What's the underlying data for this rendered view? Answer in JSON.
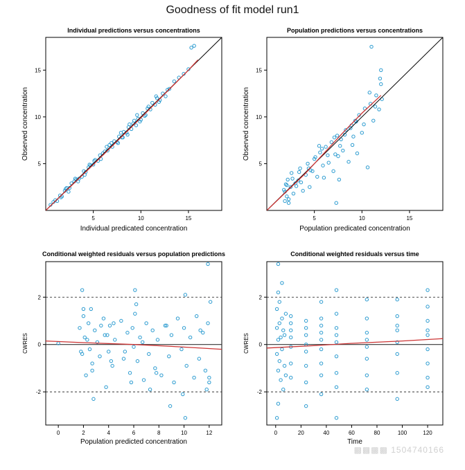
{
  "figure": {
    "title": "Goodness of fit model run1"
  },
  "colors": {
    "points": "#2b9bd0",
    "smooth": "#cc3333",
    "identity": "#000000",
    "axes": "#000000",
    "reference": "#333333"
  },
  "chart_data": [
    {
      "type": "scatter",
      "title": "Individual predictions versus concentrations",
      "xlabel": "Individual predicated concentration",
      "ylabel": "Observed concentration",
      "xlim": [
        0,
        18.5
      ],
      "ylim": [
        0,
        18.5
      ],
      "xticks": [
        5,
        10,
        15
      ],
      "yticks": [
        5,
        10,
        15
      ],
      "identity_line": true,
      "smooth": [
        [
          0,
          0
        ],
        [
          5,
          4.9
        ],
        [
          10,
          9.9
        ],
        [
          15,
          15.0
        ],
        [
          16,
          16.1
        ]
      ],
      "x": [
        0.5,
        0.8,
        1.0,
        1.2,
        1.5,
        1.7,
        2.0,
        2.2,
        2.5,
        2.7,
        3.0,
        3.2,
        3.5,
        3.8,
        4.0,
        4.2,
        4.5,
        4.7,
        5.0,
        5.2,
        5.5,
        5.7,
        6.0,
        6.2,
        6.5,
        6.7,
        7.0,
        7.2,
        7.5,
        7.7,
        8.0,
        8.2,
        8.5,
        8.7,
        9.0,
        9.2,
        9.5,
        9.7,
        10.0,
        10.2,
        10.5,
        10.7,
        11.0,
        11.2,
        11.5,
        11.7,
        12.0,
        12.3,
        12.6,
        13.0,
        13.5,
        14.0,
        14.5,
        15.0,
        15.3,
        15.6,
        2.1,
        3.4,
        4.6,
        5.8,
        6.9,
        8.1,
        9.3,
        10.4,
        11.6,
        6.4,
        7.6,
        8.8,
        9.9,
        5.1,
        4.1,
        3.1,
        2.4,
        1.6,
        7.9,
        8.6,
        9.6,
        10.8,
        11.9,
        12.8
      ],
      "y": [
        0.6,
        0.9,
        1.1,
        1.0,
        1.6,
        1.5,
        2.1,
        2.4,
        2.4,
        2.9,
        3.1,
        3.3,
        3.4,
        3.6,
        4.2,
        4.1,
        4.6,
        4.8,
        4.9,
        5.4,
        5.3,
        5.9,
        6.1,
        6.3,
        6.4,
        7.0,
        6.8,
        7.4,
        7.3,
        7.9,
        7.8,
        8.4,
        8.3,
        8.9,
        8.7,
        9.3,
        9.1,
        9.8,
        9.7,
        10.4,
        10.2,
        10.9,
        10.8,
        11.5,
        11.3,
        12.0,
        11.8,
        12.5,
        12.2,
        13.0,
        13.8,
        14.2,
        14.6,
        15.1,
        17.4,
        17.6,
        2.3,
        3.1,
        4.9,
        5.5,
        7.2,
        7.8,
        9.6,
        10.1,
        12.2,
        6.8,
        7.2,
        9.2,
        9.5,
        5.3,
        3.8,
        3.4,
        2.0,
        1.4,
        8.3,
        8.1,
        10.2,
        11.1,
        11.6,
        12.9
      ]
    },
    {
      "type": "scatter",
      "title": "Population predictions versus concentrations",
      "xlabel": "Population predicated concentration",
      "ylabel": "Observed concentration",
      "xlim": [
        0,
        18.5
      ],
      "ylim": [
        0,
        18.5
      ],
      "xticks": [
        5,
        10,
        15
      ],
      "yticks": [
        5,
        10,
        15
      ],
      "identity_line": true,
      "smooth": [
        [
          0,
          0
        ],
        [
          4,
          3.9
        ],
        [
          8,
          8.3
        ],
        [
          10,
          10.4
        ],
        [
          12,
          12.3
        ]
      ],
      "x": [
        1.8,
        1.9,
        2.0,
        2.1,
        2.2,
        2.3,
        2.5,
        2.6,
        2.8,
        3.0,
        3.3,
        3.5,
        3.8,
        4.1,
        4.3,
        4.5,
        4.8,
        5.0,
        5.3,
        5.6,
        5.9,
        6.2,
        6.5,
        6.8,
        7.0,
        7.2,
        7.4,
        7.6,
        7.8,
        8.0,
        8.3,
        8.6,
        8.9,
        9.1,
        9.3,
        9.5,
        9.7,
        10.0,
        10.3,
        10.6,
        10.9,
        11.2,
        11.5,
        11.8,
        12.0,
        12.1,
        1.9,
        2.3,
        2.7,
        3.1,
        3.6,
        4.4,
        5.1,
        5.8,
        6.4,
        7.1,
        7.5,
        8.2,
        8.8,
        9.4,
        10.2,
        10.8,
        11.4,
        11.9,
        2.1,
        3.4,
        5.5,
        7.3,
        9.0,
        11.0,
        12.0,
        6.0,
        7.7,
        4.6
      ],
      "y": [
        2.2,
        1.0,
        2.8,
        1.5,
        3.3,
        0.8,
        2.5,
        4.0,
        1.8,
        2.9,
        3.2,
        4.5,
        2.1,
        3.8,
        5.0,
        2.5,
        4.2,
        5.5,
        3.6,
        6.2,
        4.8,
        6.8,
        5.1,
        7.3,
        4.2,
        6.0,
        8.0,
        3.3,
        7.6,
        6.4,
        8.6,
        5.2,
        9.1,
        7.9,
        9.6,
        6.1,
        10.2,
        8.3,
        10.9,
        4.6,
        11.4,
        9.6,
        12.3,
        10.8,
        13.5,
        11.9,
        2.0,
        1.2,
        3.4,
        2.6,
        3.0,
        4.5,
        5.7,
        6.6,
        5.9,
        7.8,
        5.8,
        8.1,
        8.8,
        9.5,
        9.2,
        12.6,
        11.1,
        14.1,
        2.7,
        4.1,
        6.9,
        0.8,
        7.0,
        17.5,
        15.0,
        3.5,
        6.9,
        4.3
      ]
    },
    {
      "type": "scatter",
      "title": "Conditional weighted residuals versus population predictions",
      "xlabel": "Population predicted concentration",
      "ylabel": "CWRES",
      "xlim": [
        -1,
        13
      ],
      "ylim": [
        -3.4,
        3.5
      ],
      "xticks": [
        0,
        2,
        4,
        6,
        8,
        10,
        12
      ],
      "yticks": [
        -2,
        0,
        2
      ],
      "hlines": [
        {
          "y": 2,
          "style": "dashed"
        },
        {
          "y": -2,
          "style": "dashed"
        },
        {
          "y": 0,
          "style": "solid"
        }
      ],
      "smooth": [
        [
          -1,
          0.15
        ],
        [
          2,
          0.08
        ],
        [
          6,
          0.0
        ],
        [
          9,
          -0.08
        ],
        [
          13,
          -0.2
        ]
      ],
      "x": [
        0.0,
        1.7,
        1.9,
        2.0,
        2.1,
        2.2,
        2.4,
        2.5,
        2.6,
        2.7,
        2.9,
        3.1,
        3.3,
        3.6,
        3.8,
        3.9,
        4.0,
        4.1,
        4.3,
        4.5,
        5.0,
        5.2,
        5.5,
        5.7,
        5.9,
        6.0,
        6.1,
        6.3,
        6.5,
        6.8,
        7.0,
        7.2,
        7.5,
        7.7,
        7.9,
        8.2,
        8.5,
        8.8,
        9.0,
        9.2,
        9.5,
        9.8,
        10.0,
        10.2,
        10.5,
        10.8,
        11.0,
        11.2,
        11.5,
        11.7,
        11.9,
        12.0,
        12.1,
        1.8,
        2.3,
        2.8,
        3.4,
        4.2,
        5.3,
        6.2,
        7.3,
        8.9,
        10.1,
        11.8,
        2.0,
        2.7,
        3.7,
        4.4,
        5.8,
        6.7,
        7.8,
        8.6,
        9.9,
        11.3,
        12.0,
        10.1,
        1.9,
        6.1,
        11.9
      ],
      "y": [
        0.05,
        0.7,
        -0.4,
        1.2,
        0.3,
        -1.3,
        0.9,
        -0.2,
        1.5,
        -0.8,
        0.6,
        0.1,
        -0.5,
        1.1,
        -1.8,
        0.4,
        -0.3,
        0.8,
        -0.9,
        0.2,
        1.0,
        -0.6,
        0.5,
        -1.2,
        0.7,
        -0.1,
        1.3,
        -0.7,
        0.3,
        -1.5,
        0.9,
        -0.4,
        0.6,
        -1.0,
        0.2,
        -1.3,
        0.8,
        -0.5,
        0.4,
        -1.6,
        1.1,
        -0.2,
        0.7,
        -0.9,
        0.3,
        -1.4,
        1.2,
        -0.6,
        0.5,
        -1.1,
        0.9,
        -1.6,
        1.8,
        -0.3,
        0.2,
        -2.3,
        0.8,
        -0.7,
        -0.3,
        1.7,
        -1.9,
        -2.6,
        -3.1,
        -1.9,
        1.5,
        -1.1,
        0.4,
        0.9,
        -1.6,
        0.1,
        -1.2,
        0.8,
        -2.1,
        0.6,
        -1.4,
        2.1,
        2.3,
        2.3,
        3.4
      ]
    },
    {
      "type": "scatter",
      "title": "Conditional weighted residuals versus time",
      "xlabel": "Time",
      "ylabel": "CWRES",
      "xlim": [
        -7,
        132
      ],
      "ylim": [
        -3.4,
        3.5
      ],
      "xticks": [
        0,
        20,
        40,
        60,
        80,
        100,
        120
      ],
      "yticks": [
        -2,
        0,
        2
      ],
      "hlines": [
        {
          "y": 2,
          "style": "dashed"
        },
        {
          "y": -2,
          "style": "dashed"
        },
        {
          "y": 0,
          "style": "solid"
        }
      ],
      "smooth": [
        [
          -7,
          -0.15
        ],
        [
          30,
          -0.05
        ],
        [
          60,
          0.05
        ],
        [
          100,
          0.15
        ],
        [
          132,
          0.25
        ]
      ],
      "x": [
        1,
        1,
        1,
        2,
        2,
        2,
        2,
        3,
        3,
        3,
        4,
        4,
        5,
        5,
        6,
        6,
        7,
        7,
        8,
        8,
        12,
        12,
        12,
        12,
        12,
        12,
        12,
        24,
        24,
        24,
        24,
        24,
        24,
        24,
        24,
        36,
        36,
        36,
        36,
        36,
        36,
        36,
        36,
        36,
        48,
        48,
        48,
        48,
        48,
        48,
        48,
        48,
        48,
        72,
        72,
        72,
        72,
        72,
        72,
        72,
        72,
        96,
        96,
        96,
        96,
        96,
        96,
        96,
        96,
        120,
        120,
        120,
        120,
        120,
        120,
        120,
        120,
        120,
        2,
        1,
        5
      ],
      "y": [
        0.7,
        -0.4,
        1.5,
        -1.1,
        0.2,
        2.2,
        -2.5,
        0.9,
        -0.7,
        1.8,
        0.3,
        -1.5,
        1.1,
        -0.2,
        0.6,
        -1.9,
        0.4,
        -0.9,
        1.3,
        -1.3,
        1.2,
        0.6,
        -0.1,
        -0.8,
        -1.4,
        0.3,
        0.9,
        1.0,
        0.4,
        -0.3,
        -0.9,
        -1.6,
        -2.6,
        0.7,
        0.0,
        1.8,
        1.1,
        0.5,
        -0.2,
        -0.8,
        -1.3,
        -2.1,
        0.2,
        0.8,
        2.3,
        1.3,
        0.7,
        0.1,
        -0.5,
        -1.2,
        -1.8,
        -3.1,
        0.4,
        1.9,
        1.1,
        0.5,
        -0.1,
        -0.6,
        -1.3,
        -1.9,
        0.2,
        1.9,
        1.2,
        0.6,
        0.1,
        -0.4,
        -1.2,
        -2.3,
        0.8,
        2.3,
        1.6,
        1.0,
        0.4,
        -0.2,
        -0.8,
        -1.4,
        -1.8,
        0.6,
        3.4,
        -3.1,
        2.6
      ]
    }
  ]
}
